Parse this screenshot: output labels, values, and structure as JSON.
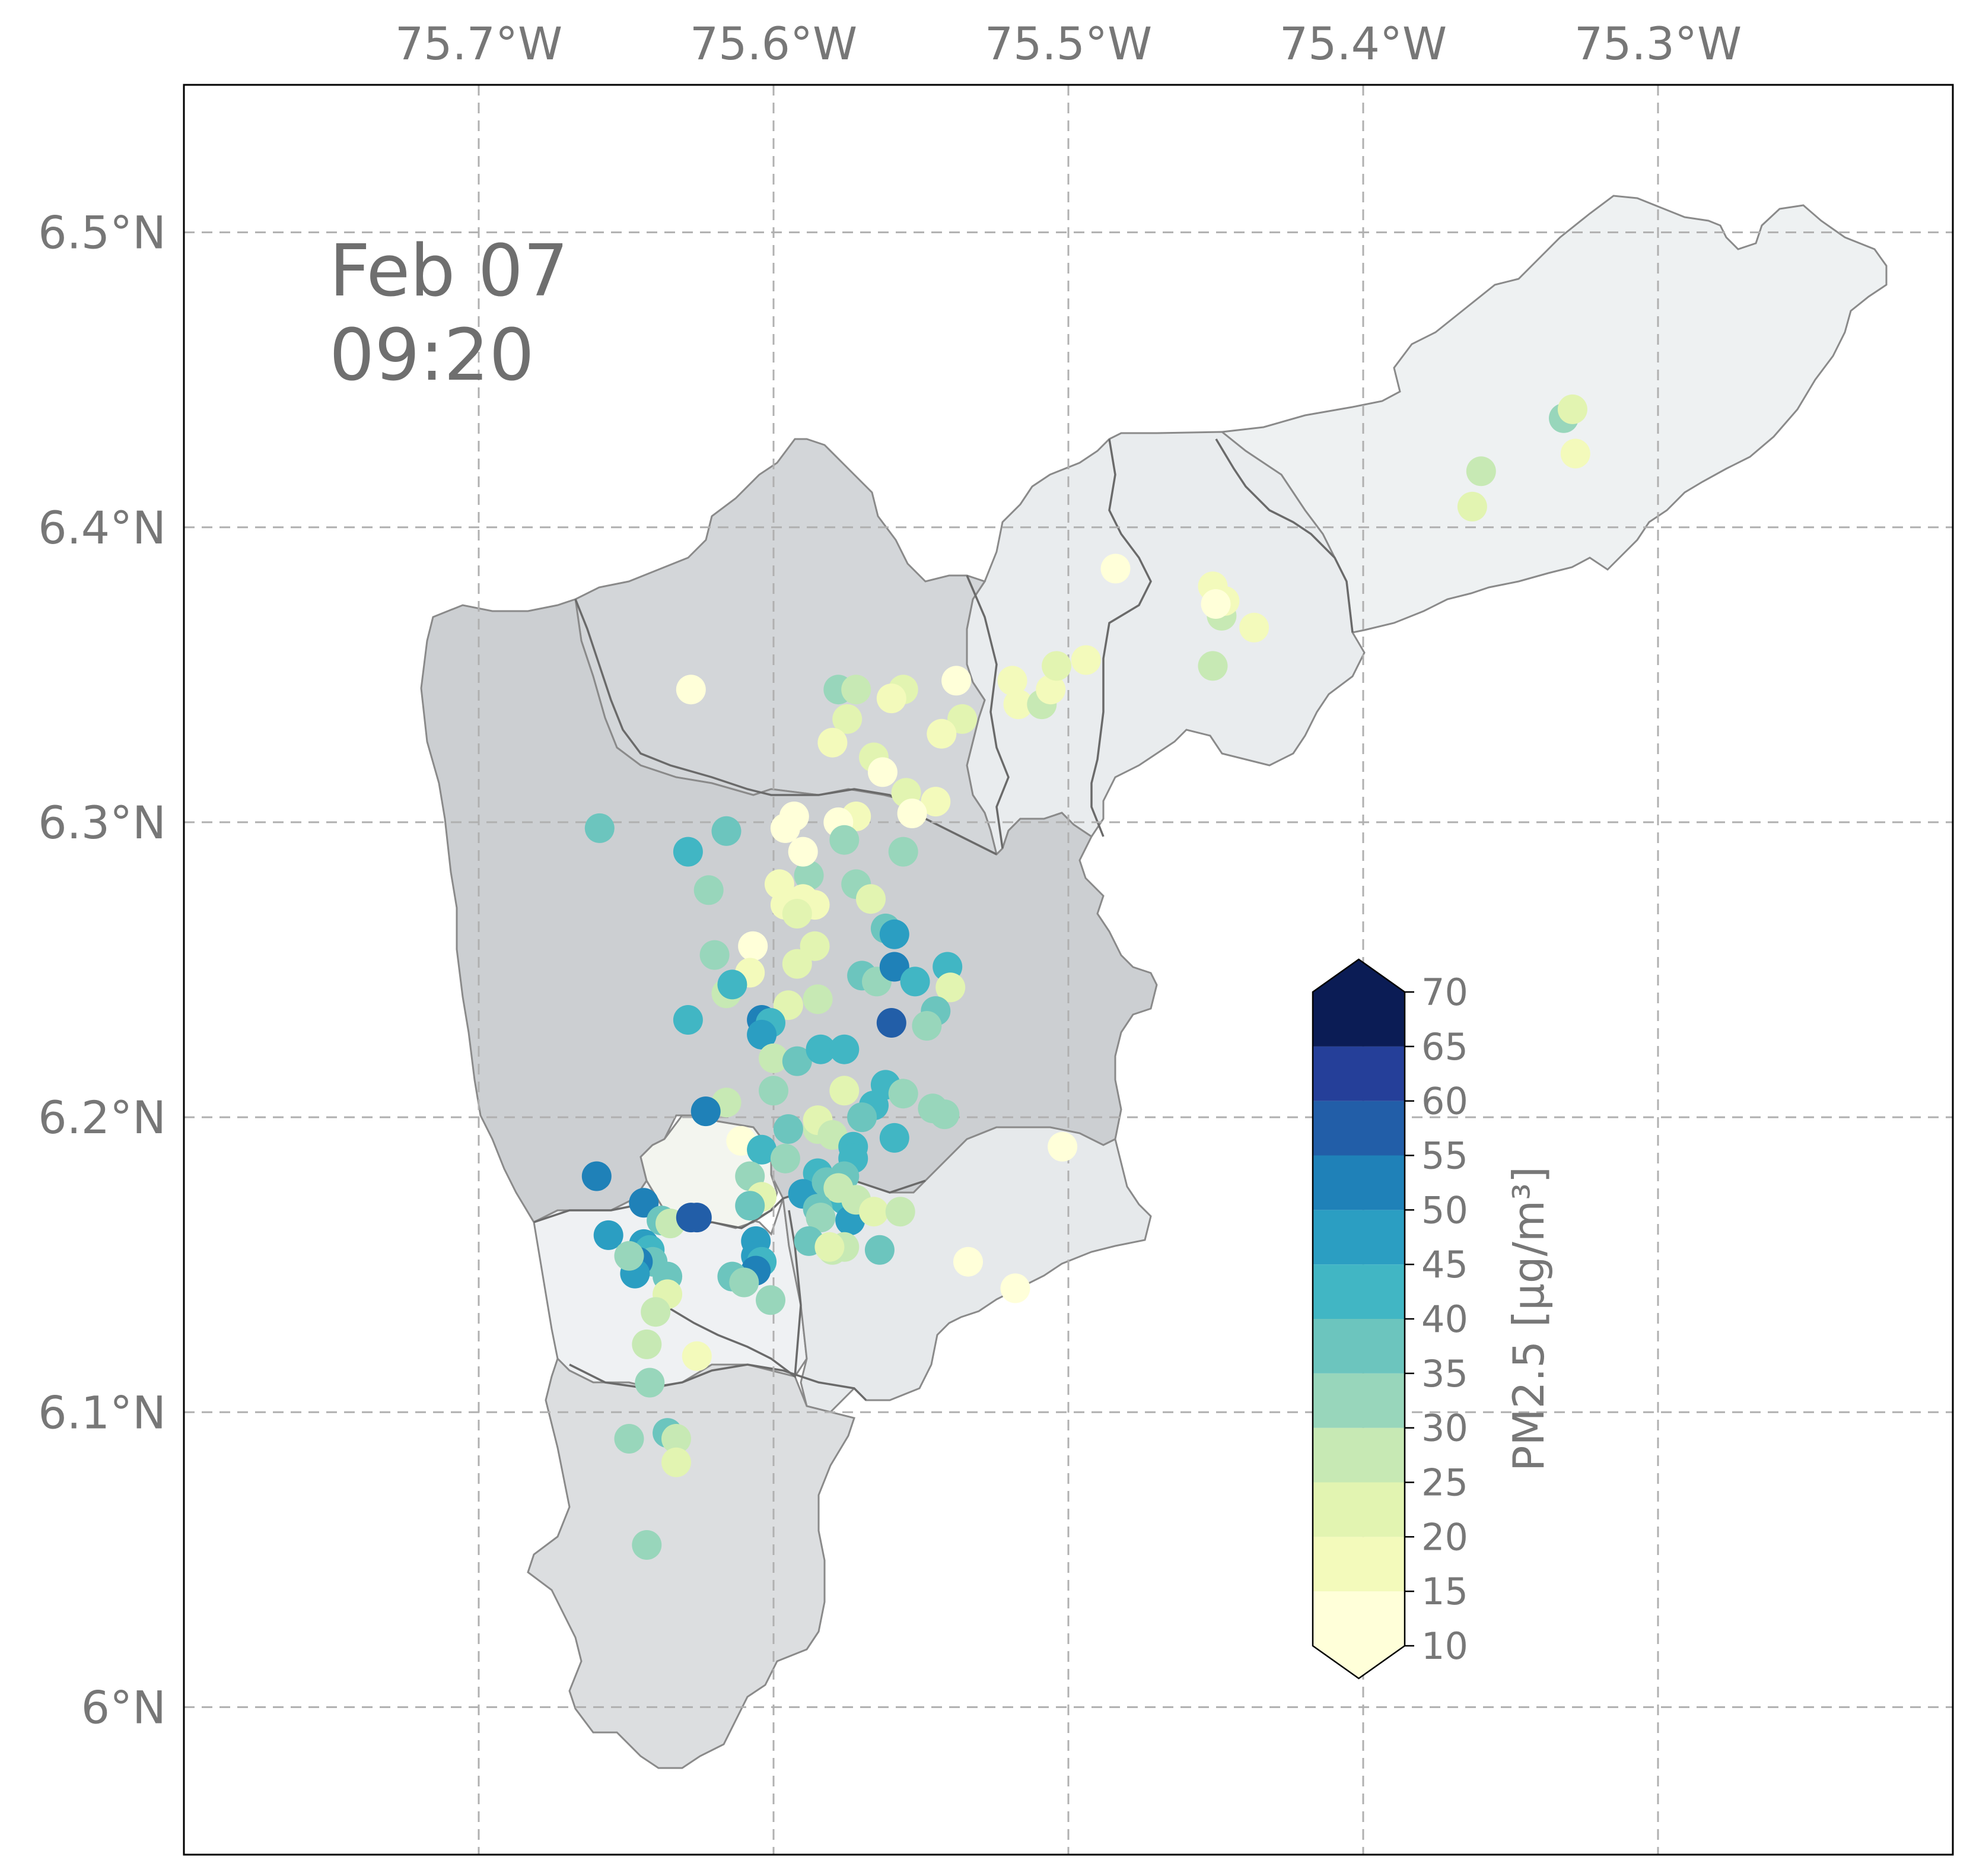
{
  "map": {
    "timestamp": {
      "date": "Feb 07",
      "time": "09:20"
    },
    "extent": {
      "lon_min": -75.8,
      "lon_max": -75.2,
      "lat_min": 5.95,
      "lat_max": 6.55
    },
    "longitude_ticks": [
      {
        "value": -75.7,
        "label": "75.7°W"
      },
      {
        "value": -75.6,
        "label": "75.6°W"
      },
      {
        "value": -75.5,
        "label": "75.5°W"
      },
      {
        "value": -75.4,
        "label": "75.4°W"
      },
      {
        "value": -75.3,
        "label": "75.3°W"
      }
    ],
    "latitude_ticks": [
      {
        "value": 6.5,
        "label": "6.5°N"
      },
      {
        "value": 6.4,
        "label": "6.4°N"
      },
      {
        "value": 6.3,
        "label": "6.3°N"
      },
      {
        "value": 6.2,
        "label": "6.2°N"
      },
      {
        "value": 6.1,
        "label": "6.1°N"
      },
      {
        "value": 6.0,
        "label": "6°N"
      }
    ],
    "gridlines": true,
    "region_colors": {
      "north_east": "#eef1f2",
      "east_mid": "#e9ecee",
      "north": "#d3d6d9",
      "main": "#cccfd2",
      "south_west": "#eff1f3",
      "south_east": "#e6e9eb",
      "south": "#dcdee0",
      "center": "#f3f5ef"
    },
    "colorbar": {
      "label": "PM2.5 [μg/m³]",
      "ticks": [
        "10",
        "15",
        "20",
        "25",
        "30",
        "35",
        "40",
        "45",
        "50",
        "55",
        "60",
        "65",
        "70"
      ],
      "colors": [
        "#ffffd9",
        "#f3fabb",
        "#e2f4b1",
        "#c7e9b4",
        "#98d6bb",
        "#6cc5be",
        "#41b6c4",
        "#2b9ec2",
        "#1f81b8",
        "#225ea8",
        "#253f99",
        "#0b1c55"
      ]
    },
    "stations": [
      {
        "lon": -75.628,
        "lat": 6.345,
        "pm": 10
      },
      {
        "lon": -75.578,
        "lat": 6.345,
        "pm": 30
      },
      {
        "lon": -75.572,
        "lat": 6.345,
        "pm": 28
      },
      {
        "lon": -75.556,
        "lat": 6.345,
        "pm": 20
      },
      {
        "lon": -75.56,
        "lat": 6.342,
        "pm": 18
      },
      {
        "lon": -75.575,
        "lat": 6.335,
        "pm": 22
      },
      {
        "lon": -75.58,
        "lat": 6.327,
        "pm": 18
      },
      {
        "lon": -75.566,
        "lat": 6.322,
        "pm": 20
      },
      {
        "lon": -75.563,
        "lat": 6.317,
        "pm": 12
      },
      {
        "lon": -75.555,
        "lat": 6.31,
        "pm": 20
      },
      {
        "lon": -75.545,
        "lat": 6.307,
        "pm": 18
      },
      {
        "lon": -75.553,
        "lat": 6.303,
        "pm": 12
      },
      {
        "lon": -75.572,
        "lat": 6.302,
        "pm": 15
      },
      {
        "lon": -75.578,
        "lat": 6.3,
        "pm": 12
      },
      {
        "lon": -75.593,
        "lat": 6.302,
        "pm": 12
      },
      {
        "lon": -75.596,
        "lat": 6.298,
        "pm": 12
      },
      {
        "lon": -75.538,
        "lat": 6.348,
        "pm": 12
      },
      {
        "lon": -75.536,
        "lat": 6.335,
        "pm": 20
      },
      {
        "lon": -75.543,
        "lat": 6.33,
        "pm": 18
      },
      {
        "lon": -75.519,
        "lat": 6.348,
        "pm": 15
      },
      {
        "lon": -75.517,
        "lat": 6.34,
        "pm": 18
      },
      {
        "lon": -75.509,
        "lat": 6.34,
        "pm": 25
      },
      {
        "lon": -75.506,
        "lat": 6.345,
        "pm": 15
      },
      {
        "lon": -75.504,
        "lat": 6.353,
        "pm": 20
      },
      {
        "lon": -75.494,
        "lat": 6.355,
        "pm": 18
      },
      {
        "lon": -75.484,
        "lat": 6.386,
        "pm": 12
      },
      {
        "lon": -75.451,
        "lat": 6.38,
        "pm": 18
      },
      {
        "lon": -75.448,
        "lat": 6.37,
        "pm": 25
      },
      {
        "lon": -75.447,
        "lat": 6.375,
        "pm": 18
      },
      {
        "lon": -75.45,
        "lat": 6.374,
        "pm": 12
      },
      {
        "lon": -75.437,
        "lat": 6.366,
        "pm": 18
      },
      {
        "lon": -75.451,
        "lat": 6.353,
        "pm": 25
      },
      {
        "lon": -75.332,
        "lat": 6.437,
        "pm": 30
      },
      {
        "lon": -75.329,
        "lat": 6.44,
        "pm": 20
      },
      {
        "lon": -75.328,
        "lat": 6.425,
        "pm": 15
      },
      {
        "lon": -75.36,
        "lat": 6.419,
        "pm": 25
      },
      {
        "lon": -75.363,
        "lat": 6.407,
        "pm": 20
      },
      {
        "lon": -75.659,
        "lat": 6.298,
        "pm": 38
      },
      {
        "lon": -75.629,
        "lat": 6.29,
        "pm": 42
      },
      {
        "lon": -75.616,
        "lat": 6.297,
        "pm": 38
      },
      {
        "lon": -75.622,
        "lat": 6.277,
        "pm": 32
      },
      {
        "lon": -75.588,
        "lat": 6.282,
        "pm": 32
      },
      {
        "lon": -75.576,
        "lat": 6.294,
        "pm": 32
      },
      {
        "lon": -75.556,
        "lat": 6.29,
        "pm": 32
      },
      {
        "lon": -75.59,
        "lat": 6.29,
        "pm": 12
      },
      {
        "lon": -75.598,
        "lat": 6.279,
        "pm": 15
      },
      {
        "lon": -75.59,
        "lat": 6.274,
        "pm": 18
      },
      {
        "lon": -75.596,
        "lat": 6.272,
        "pm": 15
      },
      {
        "lon": -75.586,
        "lat": 6.272,
        "pm": 18
      },
      {
        "lon": -75.592,
        "lat": 6.269,
        "pm": 20
      },
      {
        "lon": -75.572,
        "lat": 6.279,
        "pm": 32
      },
      {
        "lon": -75.567,
        "lat": 6.274,
        "pm": 20
      },
      {
        "lon": -75.562,
        "lat": 6.264,
        "pm": 35
      },
      {
        "lon": -75.559,
        "lat": 6.262,
        "pm": 45
      },
      {
        "lon": -75.586,
        "lat": 6.258,
        "pm": 20
      },
      {
        "lon": -75.607,
        "lat": 6.258,
        "pm": 12
      },
      {
        "lon": -75.62,
        "lat": 6.255,
        "pm": 30
      },
      {
        "lon": -75.592,
        "lat": 6.252,
        "pm": 20
      },
      {
        "lon": -75.608,
        "lat": 6.249,
        "pm": 15
      },
      {
        "lon": -75.616,
        "lat": 6.242,
        "pm": 28
      },
      {
        "lon": -75.614,
        "lat": 6.245,
        "pm": 40
      },
      {
        "lon": -75.595,
        "lat": 6.238,
        "pm": 20
      },
      {
        "lon": -75.585,
        "lat": 6.24,
        "pm": 25
      },
      {
        "lon": -75.57,
        "lat": 6.248,
        "pm": 35
      },
      {
        "lon": -75.565,
        "lat": 6.246,
        "pm": 32
      },
      {
        "lon": -75.559,
        "lat": 6.251,
        "pm": 50
      },
      {
        "lon": -75.552,
        "lat": 6.246,
        "pm": 40
      },
      {
        "lon": -75.541,
        "lat": 6.251,
        "pm": 40
      },
      {
        "lon": -75.54,
        "lat": 6.244,
        "pm": 20
      },
      {
        "lon": -75.545,
        "lat": 6.236,
        "pm": 38
      },
      {
        "lon": -75.548,
        "lat": 6.231,
        "pm": 32
      },
      {
        "lon": -75.56,
        "lat": 6.232,
        "pm": 55
      },
      {
        "lon": -75.629,
        "lat": 6.233,
        "pm": 42
      },
      {
        "lon": -75.604,
        "lat": 6.233,
        "pm": 50
      },
      {
        "lon": -75.601,
        "lat": 6.232,
        "pm": 42
      },
      {
        "lon": -75.604,
        "lat": 6.228,
        "pm": 45
      },
      {
        "lon": -75.6,
        "lat": 6.22,
        "pm": 25
      },
      {
        "lon": -75.592,
        "lat": 6.219,
        "pm": 35
      },
      {
        "lon": -75.584,
        "lat": 6.223,
        "pm": 42
      },
      {
        "lon": -75.576,
        "lat": 6.223,
        "pm": 42
      },
      {
        "lon": -75.576,
        "lat": 6.209,
        "pm": 20
      },
      {
        "lon": -75.562,
        "lat": 6.211,
        "pm": 42
      },
      {
        "lon": -75.556,
        "lat": 6.208,
        "pm": 32
      },
      {
        "lon": -75.6,
        "lat": 6.209,
        "pm": 32
      },
      {
        "lon": -75.616,
        "lat": 6.205,
        "pm": 25
      },
      {
        "lon": -75.623,
        "lat": 6.202,
        "pm": 50
      },
      {
        "lon": -75.566,
        "lat": 6.204,
        "pm": 40
      },
      {
        "lon": -75.57,
        "lat": 6.2,
        "pm": 38
      },
      {
        "lon": -75.585,
        "lat": 6.196,
        "pm": 28
      },
      {
        "lon": -75.585,
        "lat": 6.199,
        "pm": 22
      },
      {
        "lon": -75.595,
        "lat": 6.196,
        "pm": 38
      },
      {
        "lon": -75.58,
        "lat": 6.194,
        "pm": 25
      },
      {
        "lon": -75.559,
        "lat": 6.193,
        "pm": 40
      },
      {
        "lon": -75.546,
        "lat": 6.203,
        "pm": 32
      },
      {
        "lon": -75.542,
        "lat": 6.201,
        "pm": 30
      },
      {
        "lon": -75.611,
        "lat": 6.192,
        "pm": 12
      },
      {
        "lon": -75.604,
        "lat": 6.189,
        "pm": 42
      },
      {
        "lon": -75.596,
        "lat": 6.186,
        "pm": 30
      },
      {
        "lon": -75.608,
        "lat": 6.18,
        "pm": 30
      },
      {
        "lon": -75.573,
        "lat": 6.19,
        "pm": 40
      },
      {
        "lon": -75.573,
        "lat": 6.186,
        "pm": 42
      },
      {
        "lon": -75.576,
        "lat": 6.18,
        "pm": 38
      },
      {
        "lon": -75.585,
        "lat": 6.181,
        "pm": 42
      },
      {
        "lon": -75.59,
        "lat": 6.174,
        "pm": 45
      },
      {
        "lon": -75.582,
        "lat": 6.178,
        "pm": 38
      },
      {
        "lon": -75.576,
        "lat": 6.172,
        "pm": 40
      },
      {
        "lon": -75.578,
        "lat": 6.176,
        "pm": 28
      },
      {
        "lon": -75.585,
        "lat": 6.169,
        "pm": 38
      },
      {
        "lon": -75.584,
        "lat": 6.166,
        "pm": 30
      },
      {
        "lon": -75.574,
        "lat": 6.165,
        "pm": 45
      },
      {
        "lon": -75.572,
        "lat": 6.172,
        "pm": 25
      },
      {
        "lon": -75.566,
        "lat": 6.168,
        "pm": 22
      },
      {
        "lon": -75.557,
        "lat": 6.168,
        "pm": 25
      },
      {
        "lon": -75.604,
        "lat": 6.173,
        "pm": 22
      },
      {
        "lon": -75.608,
        "lat": 6.17,
        "pm": 38
      },
      {
        "lon": -75.66,
        "lat": 6.18,
        "pm": 50
      },
      {
        "lon": -75.644,
        "lat": 6.171,
        "pm": 50
      },
      {
        "lon": -75.638,
        "lat": 6.165,
        "pm": 38
      },
      {
        "lon": -75.635,
        "lat": 6.164,
        "pm": 28
      },
      {
        "lon": -75.628,
        "lat": 6.166,
        "pm": 55
      },
      {
        "lon": -75.626,
        "lat": 6.166,
        "pm": 58
      },
      {
        "lon": -75.656,
        "lat": 6.16,
        "pm": 45
      },
      {
        "lon": -75.644,
        "lat": 6.157,
        "pm": 45
      },
      {
        "lon": -75.642,
        "lat": 6.155,
        "pm": 42
      },
      {
        "lon": -75.641,
        "lat": 6.151,
        "pm": 38
      },
      {
        "lon": -75.646,
        "lat": 6.151,
        "pm": 50
      },
      {
        "lon": -75.647,
        "lat": 6.147,
        "pm": 45
      },
      {
        "lon": -75.649,
        "lat": 6.153,
        "pm": 30
      },
      {
        "lon": -75.636,
        "lat": 6.146,
        "pm": 35
      },
      {
        "lon": -75.636,
        "lat": 6.14,
        "pm": 20
      },
      {
        "lon": -75.64,
        "lat": 6.134,
        "pm": 25
      },
      {
        "lon": -75.606,
        "lat": 6.158,
        "pm": 45
      },
      {
        "lon": -75.606,
        "lat": 6.153,
        "pm": 45
      },
      {
        "lon": -75.604,
        "lat": 6.151,
        "pm": 42
      },
      {
        "lon": -75.606,
        "lat": 6.148,
        "pm": 50
      },
      {
        "lon": -75.614,
        "lat": 6.146,
        "pm": 35
      },
      {
        "lon": -75.61,
        "lat": 6.144,
        "pm": 30
      },
      {
        "lon": -75.601,
        "lat": 6.138,
        "pm": 32
      },
      {
        "lon": -75.588,
        "lat": 6.158,
        "pm": 38
      },
      {
        "lon": -75.576,
        "lat": 6.156,
        "pm": 28
      },
      {
        "lon": -75.58,
        "lat": 6.155,
        "pm": 25
      },
      {
        "lon": -75.581,
        "lat": 6.156,
        "pm": 20
      },
      {
        "lon": -75.564,
        "lat": 6.155,
        "pm": 38
      },
      {
        "lon": -75.534,
        "lat": 6.151,
        "pm": 12
      },
      {
        "lon": -75.518,
        "lat": 6.142,
        "pm": 12
      },
      {
        "lon": -75.502,
        "lat": 6.19,
        "pm": 12
      },
      {
        "lon": -75.643,
        "lat": 6.123,
        "pm": 25
      },
      {
        "lon": -75.626,
        "lat": 6.119,
        "pm": 18
      },
      {
        "lon": -75.642,
        "lat": 6.11,
        "pm": 32
      },
      {
        "lon": -75.649,
        "lat": 6.091,
        "pm": 30
      },
      {
        "lon": -75.636,
        "lat": 6.093,
        "pm": 38
      },
      {
        "lon": -75.633,
        "lat": 6.091,
        "pm": 25
      },
      {
        "lon": -75.633,
        "lat": 6.083,
        "pm": 20
      },
      {
        "lon": -75.643,
        "lat": 6.055,
        "pm": 32
      }
    ]
  }
}
